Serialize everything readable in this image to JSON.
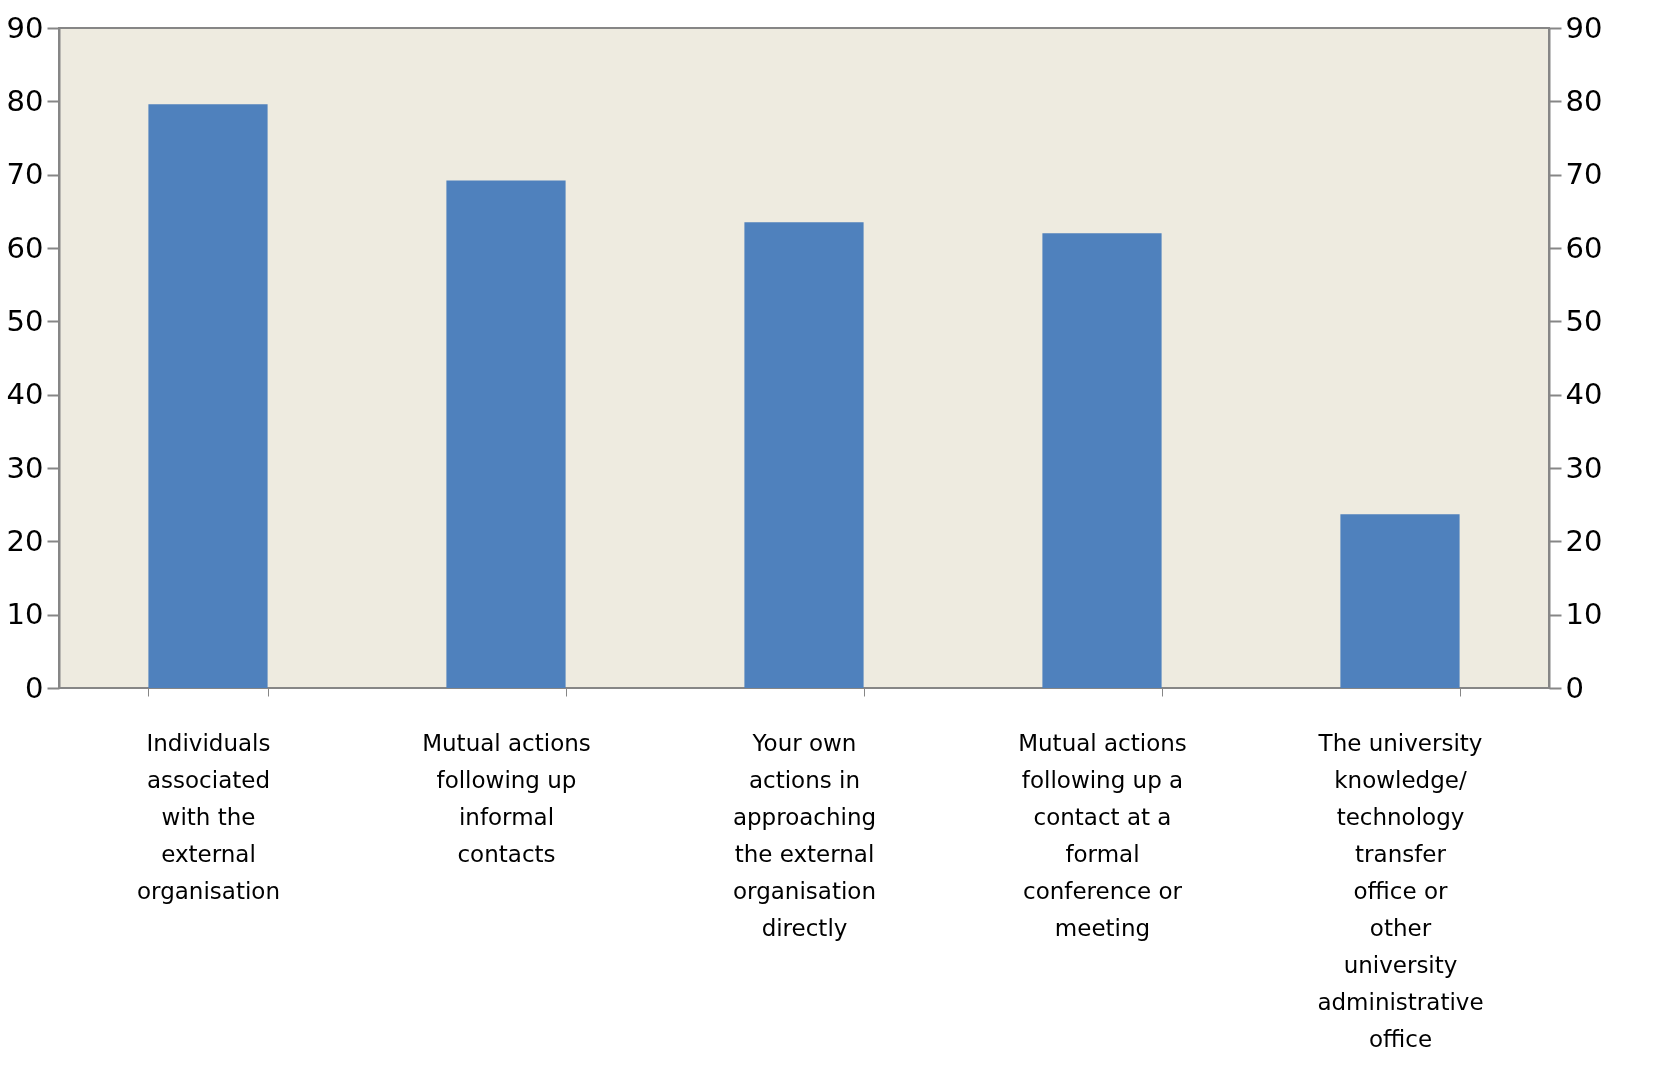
{
  "chart_data": {
    "type": "bar",
    "categories": [
      "Individuals associated with the external organisation",
      "Mutual actions following up informal contacts",
      "Your own actions in approaching the external organisation directly",
      "Mutual actions following up a contact at a formal conference or meeting",
      "The university knowledge/ technology transfer office or other university administrative office"
    ],
    "values": [
      79.6,
      69.2,
      63.5,
      62,
      23.7
    ],
    "color": "#4f81bd",
    "ylim": [
      0,
      90
    ],
    "yticks": [
      0,
      10,
      20,
      30,
      40,
      50,
      60,
      70,
      80,
      90
    ],
    "y2lim": [
      0,
      90
    ],
    "y2ticks": [
      0,
      10,
      20,
      30,
      40,
      50,
      60,
      70,
      80,
      90
    ],
    "grid": false
  }
}
